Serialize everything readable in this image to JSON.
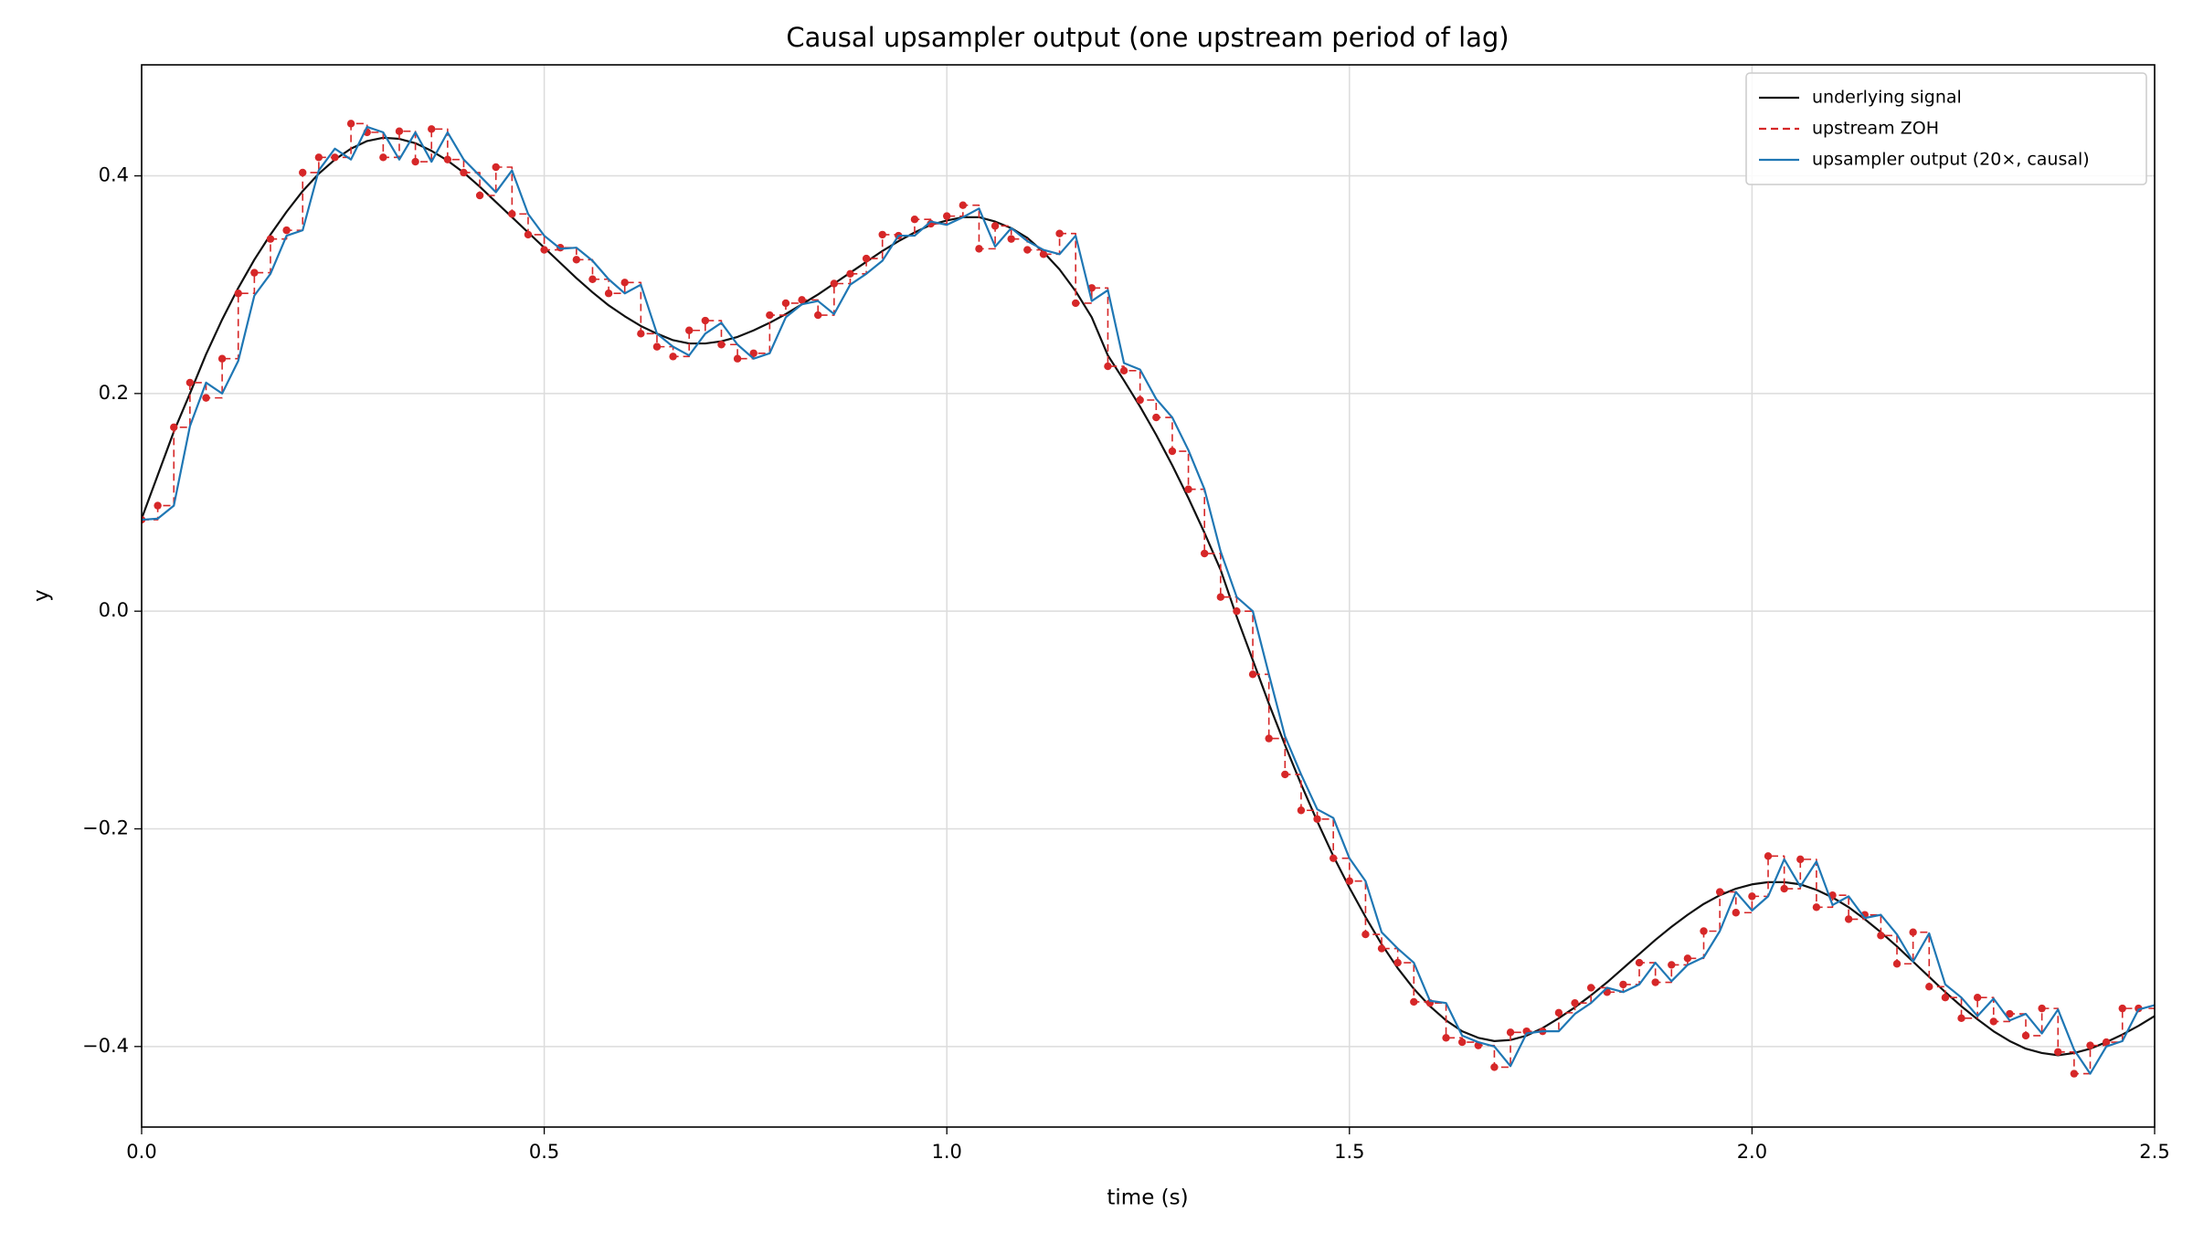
{
  "chart_data": {
    "type": "line",
    "title": "Causal upsampler output (one upstream period of lag)",
    "xlabel": "time (s)",
    "ylabel": "y",
    "xlim": [
      0,
      2.5
    ],
    "ylim": [
      -0.474,
      0.502
    ],
    "xticks": [
      {
        "value": 0,
        "label": "0.0"
      },
      0.5,
      {
        "value": 1,
        "label": "1.0"
      },
      1.5,
      {
        "value": 2,
        "label": "2.0"
      },
      2.5
    ],
    "yticks": [
      {
        "value": -0.4,
        "label": "−0.4"
      },
      {
        "value": -0.2,
        "label": "−0.2"
      },
      {
        "value": 0,
        "label": "0.0"
      },
      0.2,
      0.4
    ],
    "grid": true,
    "legend": "upper right",
    "x": [
      0,
      0.02,
      0.04,
      0.06,
      0.08,
      0.1,
      0.12,
      0.14,
      0.16,
      0.18,
      0.2,
      0.22,
      0.24,
      0.26,
      0.28,
      0.3,
      0.32,
      0.34,
      0.36,
      0.38,
      0.4,
      0.42,
      0.44,
      0.46,
      0.48,
      0.5,
      0.52,
      0.54,
      0.56,
      0.58,
      0.6,
      0.62,
      0.64,
      0.66,
      0.68,
      0.7,
      0.72,
      0.74,
      0.76,
      0.78,
      0.8,
      0.82,
      0.84,
      0.86,
      0.88,
      0.9,
      0.92,
      0.94,
      0.96,
      0.98,
      1,
      1.02,
      1.04,
      1.06,
      1.08,
      1.1,
      1.12,
      1.14,
      1.16,
      1.18,
      1.2,
      1.22,
      1.24,
      1.26,
      1.28,
      1.3,
      1.32,
      1.34,
      1.36,
      1.38,
      1.4,
      1.42,
      1.44,
      1.46,
      1.48,
      1.5,
      1.52,
      1.54,
      1.56,
      1.58,
      1.6,
      1.62,
      1.64,
      1.66,
      1.68,
      1.7,
      1.72,
      1.74,
      1.76,
      1.78,
      1.8,
      1.82,
      1.84,
      1.86,
      1.88,
      1.9,
      1.92,
      1.94,
      1.96,
      1.98,
      2,
      2.02,
      2.04,
      2.06,
      2.08,
      2.1,
      2.12,
      2.14,
      2.16,
      2.18,
      2.2,
      2.22,
      2.24,
      2.26,
      2.28,
      2.3,
      2.32,
      2.34,
      2.36,
      2.38,
      2.4,
      2.42,
      2.44,
      2.46,
      2.48,
      2.5
    ],
    "series": [
      {
        "name": "underlying signal",
        "color": "#111111",
        "linestyle": "solid",
        "values": [
          0.085,
          0.125,
          0.165,
          0.2,
          0.236,
          0.268,
          0.297,
          0.323,
          0.346,
          0.367,
          0.386,
          0.402,
          0.415,
          0.425,
          0.432,
          0.435,
          0.434,
          0.43,
          0.423,
          0.414,
          0.403,
          0.39,
          0.376,
          0.362,
          0.348,
          0.334,
          0.32,
          0.306,
          0.293,
          0.281,
          0.271,
          0.262,
          0.255,
          0.249,
          0.246,
          0.246,
          0.248,
          0.252,
          0.258,
          0.265,
          0.273,
          0.282,
          0.291,
          0.301,
          0.311,
          0.321,
          0.331,
          0.34,
          0.348,
          0.355,
          0.359,
          0.362,
          0.362,
          0.358,
          0.352,
          0.343,
          0.33,
          0.314,
          0.294,
          0.27,
          0.235,
          0.212,
          0.188,
          0.162,
          0.134,
          0.104,
          0.072,
          0.038,
          -0.005,
          -0.045,
          -0.085,
          -0.123,
          -0.159,
          -0.193,
          -0.225,
          -0.254,
          -0.281,
          -0.306,
          -0.328,
          -0.347,
          -0.363,
          -0.376,
          -0.386,
          -0.392,
          -0.395,
          -0.394,
          -0.39,
          -0.383,
          -0.374,
          -0.364,
          -0.353,
          -0.341,
          -0.328,
          -0.315,
          -0.302,
          -0.29,
          -0.279,
          -0.269,
          -0.261,
          -0.255,
          -0.251,
          -0.249,
          -0.249,
          -0.251,
          -0.256,
          -0.263,
          -0.272,
          -0.283,
          -0.295,
          -0.308,
          -0.322,
          -0.336,
          -0.35,
          -0.363,
          -0.375,
          -0.386,
          -0.395,
          -0.402,
          -0.406,
          -0.408,
          -0.406,
          -0.402,
          -0.396,
          -0.389,
          -0.381,
          -0.372
        ]
      },
      {
        "name": "upstream ZOH",
        "color": "#d62728",
        "linestyle": "dashed",
        "step": true,
        "marker": "o",
        "values": [
          0.084,
          0.097,
          0.169,
          0.21,
          0.196,
          0.232,
          0.292,
          0.311,
          0.342,
          0.35,
          0.403,
          0.417,
          0.417,
          0.448,
          0.44,
          0.417,
          0.441,
          0.413,
          0.443,
          0.415,
          0.403,
          0.382,
          0.408,
          0.365,
          0.346,
          0.332,
          0.334,
          0.323,
          0.305,
          0.292,
          0.302,
          0.255,
          0.243,
          0.234,
          0.258,
          0.267,
          0.245,
          0.232,
          0.237,
          0.272,
          0.283,
          0.286,
          0.272,
          0.301,
          0.31,
          0.324,
          0.346,
          0.345,
          0.36,
          0.356,
          0.363,
          0.373,
          0.333,
          0.354,
          0.342,
          0.332,
          0.328,
          0.347,
          0.283,
          0.297,
          0.225,
          0.221,
          0.194,
          0.178,
          0.147,
          0.112,
          0.053,
          0.013,
          0,
          -0.058,
          -0.117,
          -0.15,
          -0.183,
          -0.191,
          -0.227,
          -0.248,
          -0.297,
          -0.31,
          -0.323,
          -0.359,
          -0.36,
          -0.392,
          -0.396,
          -0.399,
          -0.419,
          -0.387,
          -0.386,
          -0.386,
          -0.369,
          -0.36,
          -0.346,
          -0.35,
          -0.343,
          -0.323,
          -0.341,
          -0.325,
          -0.319,
          -0.294,
          -0.258,
          -0.277,
          -0.262,
          -0.225,
          -0.255,
          -0.228,
          -0.272,
          -0.261,
          -0.283,
          -0.279,
          -0.298,
          -0.324,
          -0.295,
          -0.345,
          -0.355,
          -0.374,
          -0.355,
          -0.377,
          -0.37,
          -0.39,
          -0.365,
          -0.405,
          -0.425,
          -0.399,
          -0.396,
          -0.365,
          -0.365,
          null
        ]
      },
      {
        "name": "upsampler output (20×, causal)",
        "color": "#1f77b4",
        "linestyle": "solid",
        "values": [
          0.084,
          0.085,
          0.097,
          0.17,
          0.21,
          0.2,
          0.23,
          0.29,
          0.31,
          0.345,
          0.35,
          0.405,
          0.425,
          0.415,
          0.445,
          0.44,
          0.415,
          0.44,
          0.413,
          0.44,
          0.415,
          0.4,
          0.385,
          0.405,
          0.365,
          0.345,
          0.333,
          0.334,
          0.322,
          0.305,
          0.292,
          0.3,
          0.255,
          0.243,
          0.235,
          0.255,
          0.265,
          0.245,
          0.232,
          0.237,
          0.27,
          0.282,
          0.285,
          0.273,
          0.3,
          0.31,
          0.322,
          0.345,
          0.345,
          0.358,
          0.355,
          0.362,
          0.37,
          0.335,
          0.352,
          0.34,
          0.332,
          0.328,
          0.345,
          0.285,
          0.295,
          0.228,
          0.222,
          0.195,
          0.178,
          0.148,
          0.112,
          0.055,
          0.013,
          0,
          -0.058,
          -0.115,
          -0.15,
          -0.182,
          -0.19,
          -0.227,
          -0.248,
          -0.295,
          -0.31,
          -0.323,
          -0.358,
          -0.36,
          -0.39,
          -0.396,
          -0.4,
          -0.418,
          -0.388,
          -0.386,
          -0.386,
          -0.37,
          -0.36,
          -0.346,
          -0.35,
          -0.343,
          -0.323,
          -0.34,
          -0.325,
          -0.318,
          -0.294,
          -0.258,
          -0.275,
          -0.262,
          -0.228,
          -0.253,
          -0.23,
          -0.27,
          -0.262,
          -0.282,
          -0.279,
          -0.297,
          -0.322,
          -0.296,
          -0.343,
          -0.355,
          -0.372,
          -0.356,
          -0.376,
          -0.37,
          -0.388,
          -0.366,
          -0.403,
          -0.425,
          -0.4,
          -0.395,
          -0.366,
          -0.362
        ]
      }
    ]
  }
}
